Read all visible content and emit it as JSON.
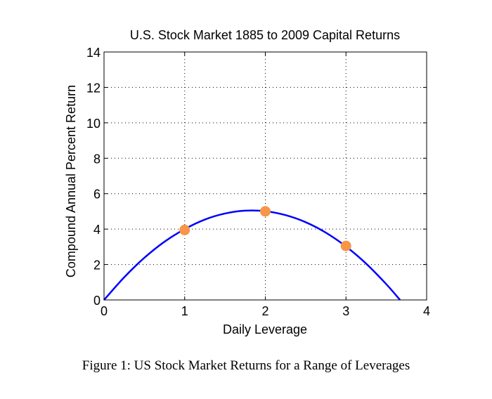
{
  "chart_data": {
    "type": "line",
    "title": "U.S. Stock Market 1885 to 2009 Capital Returns",
    "xlabel": "Daily Leverage",
    "ylabel": "Compound Annual Percent Return",
    "xlim": [
      0,
      4
    ],
    "ylim": [
      0,
      14
    ],
    "xticks": [
      "0",
      "1",
      "2",
      "3",
      "4"
    ],
    "yticks": [
      "0",
      "2",
      "4",
      "6",
      "8",
      "10",
      "12",
      "14"
    ],
    "grid": true,
    "series": [
      {
        "name": "curve",
        "color": "#0000ff",
        "x": [
          0,
          0.25,
          0.5,
          0.75,
          1,
          1.25,
          1.5,
          1.75,
          2,
          2.25,
          2.5,
          2.75,
          3,
          3.25,
          3.5,
          3.67
        ],
        "y": [
          0,
          1.28,
          2.38,
          3.29,
          4.0,
          4.54,
          4.88,
          5.04,
          5.01,
          4.79,
          4.39,
          3.8,
          3.02,
          2.05,
          0.89,
          0
        ]
      },
      {
        "name": "points",
        "color": "#f79646",
        "x": [
          1,
          2,
          3
        ],
        "y": [
          3.95,
          5.0,
          3.05
        ]
      }
    ]
  },
  "caption": "Figure 1: US Stock Market Returns for a Range of Leverages"
}
